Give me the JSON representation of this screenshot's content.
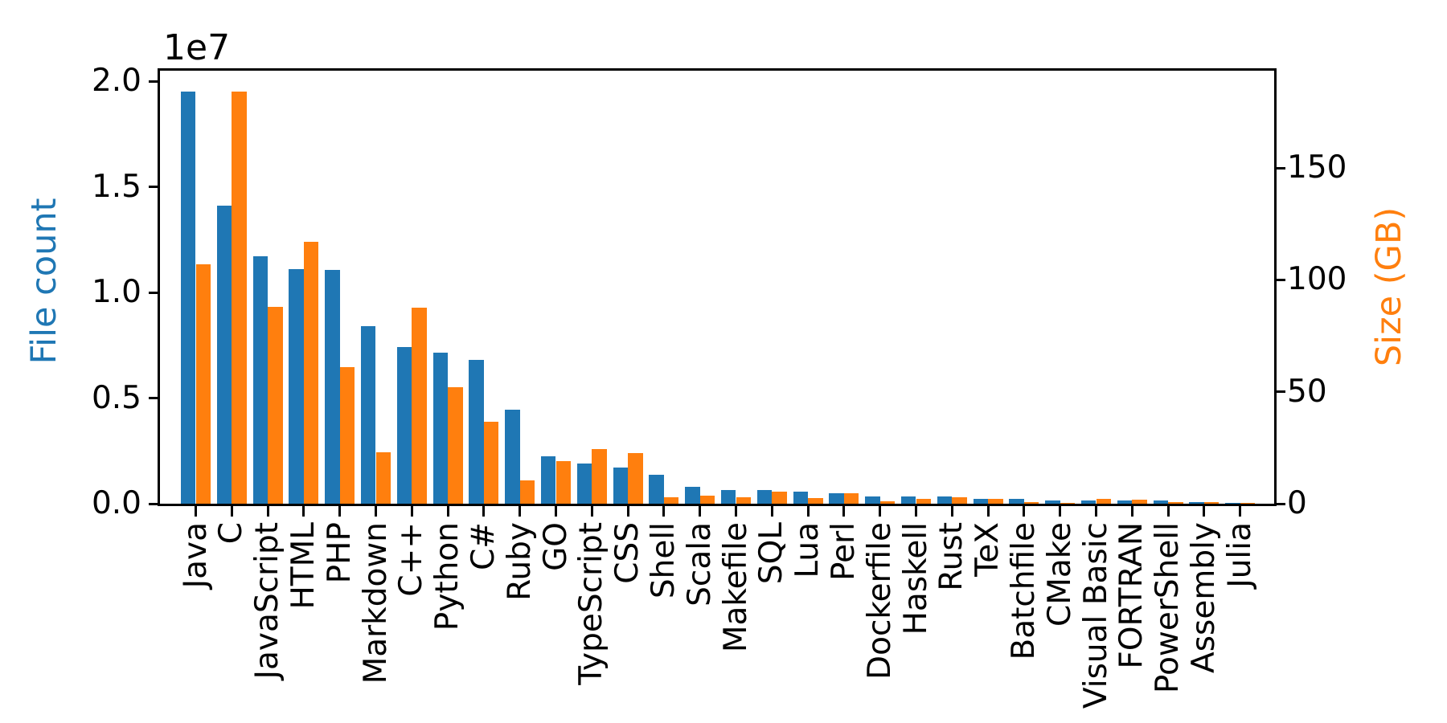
{
  "figure": {
    "background": "#ffffff",
    "text_color": "#000000"
  },
  "chart_data": {
    "type": "bar",
    "title": "",
    "grid": false,
    "legend_position": "none",
    "categories": [
      "Java",
      "C",
      "JavaScript",
      "HTML",
      "PHP",
      "Markdown",
      "C++",
      "Python",
      "C#",
      "Ruby",
      "GO",
      "TypeScript",
      "CSS",
      "Shell",
      "Scala",
      "Makefile",
      "SQL",
      "Lua",
      "Perl",
      "Dockerfile",
      "Haskell",
      "Rust",
      "TeX",
      "Batchfile",
      "CMake",
      "Visual Basic",
      "FORTRAN",
      "PowerShell",
      "Assembly",
      "Julia"
    ],
    "series": [
      {
        "name": "File count",
        "axis": "left",
        "color": "#1f77b4",
        "values": [
          19500000,
          14100000,
          11700000,
          11100000,
          11050000,
          8400000,
          7400000,
          7150000,
          6800000,
          4450000,
          2230000,
          1900000,
          1720000,
          1380000,
          790000,
          660000,
          650000,
          560000,
          490000,
          350000,
          330000,
          325000,
          240000,
          230000,
          170000,
          160000,
          150000,
          140000,
          80000,
          35000
        ]
      },
      {
        "name": "Size (GB)",
        "axis": "right",
        "color": "#ff7f0e",
        "values": [
          107,
          184,
          88,
          117,
          61,
          23,
          87.5,
          52,
          36.6,
          10.5,
          19,
          24.4,
          22.7,
          3.0,
          3.5,
          2.9,
          5.3,
          2.5,
          4.7,
          1.0,
          2.3,
          2.8,
          2.2,
          0.6,
          0.35,
          2.3,
          1.9,
          0.7,
          0.6,
          0.3
        ]
      }
    ],
    "left_axis": {
      "label": "File count",
      "color": "#1f77b4",
      "offset_text": "1e7",
      "tick_labels": [
        "0.0",
        "0.5",
        "1.0",
        "1.5",
        "2.0"
      ],
      "tick_values": [
        0,
        5000000,
        10000000,
        15000000,
        20000000
      ],
      "ylim": [
        0,
        20500000
      ]
    },
    "right_axis": {
      "label": "Size (GB)",
      "color": "#ff7f0e",
      "tick_labels": [
        "0",
        "50",
        "100",
        "150"
      ],
      "tick_values": [
        0,
        50,
        100,
        150
      ],
      "ylim": [
        0,
        193.5
      ]
    }
  }
}
